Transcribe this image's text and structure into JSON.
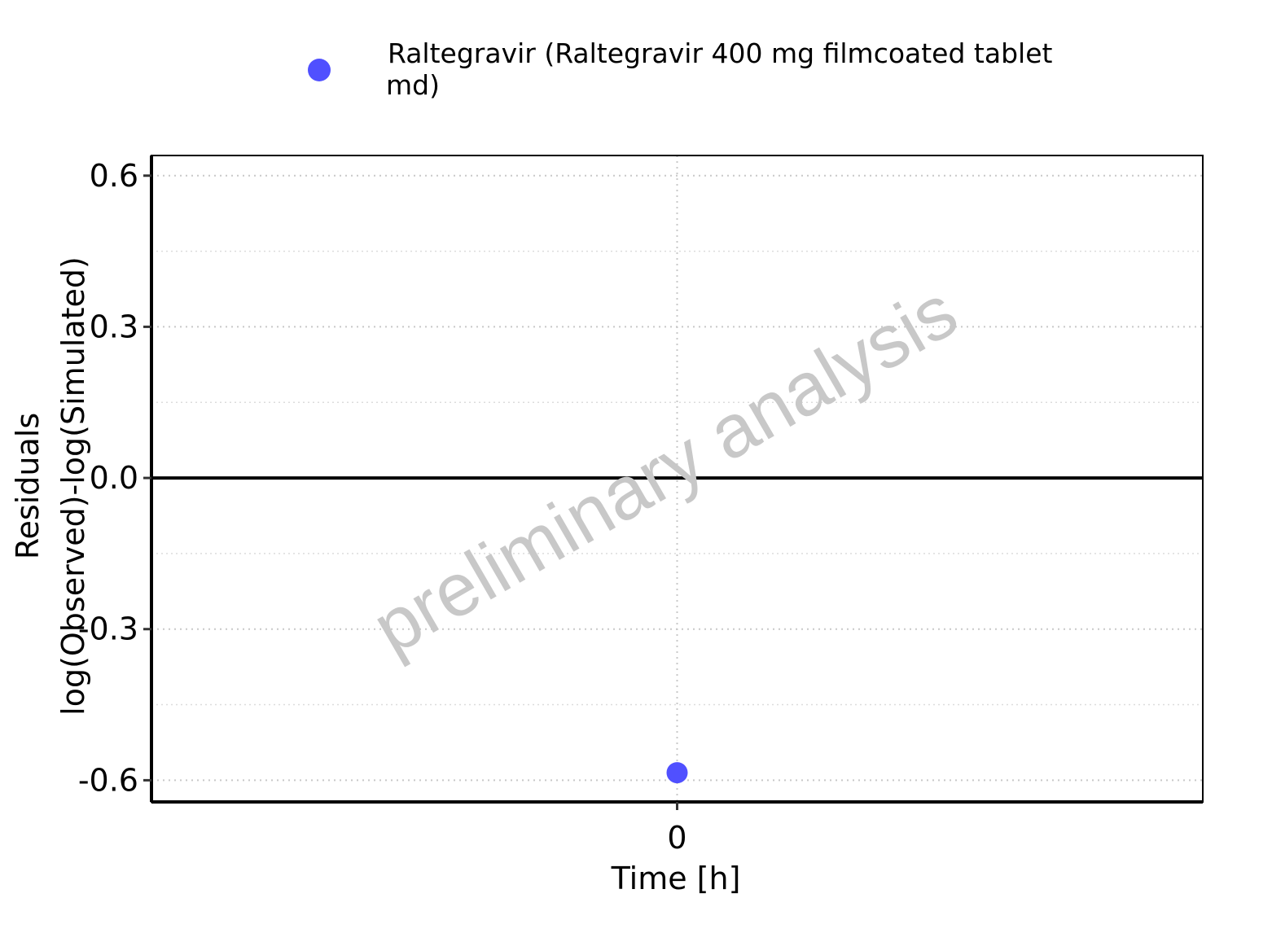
{
  "chart_data": {
    "type": "scatter",
    "title": "",
    "xlabel": "Time [h]",
    "ylabel_lines": [
      "Residuals",
      "log(Observed)-log(Simulated)"
    ],
    "x_ticks": [
      0
    ],
    "x_tick_labels": [
      "0"
    ],
    "y_ticks": [
      -0.6,
      -0.3,
      0.0,
      0.3,
      0.6
    ],
    "y_tick_labels": [
      "-0.6",
      "-0.3",
      "0.0",
      "0.3",
      "0.6"
    ],
    "xlim": [
      -1,
      1
    ],
    "ylim": [
      -0.643,
      0.64
    ],
    "reference_line_y": 0,
    "grid": true,
    "legend_position": "top",
    "series": [
      {
        "name": "Raltegravir (Raltegravir 400 mg filmcoated tablet md)",
        "legend_lines": [
          "Raltegravir (Raltegravir 400 mg filmcoated tablet",
          "md)"
        ],
        "color": "#5050ff",
        "points": [
          {
            "x": 0,
            "y": -0.585
          }
        ]
      }
    ],
    "watermark": "preliminary analysis"
  }
}
